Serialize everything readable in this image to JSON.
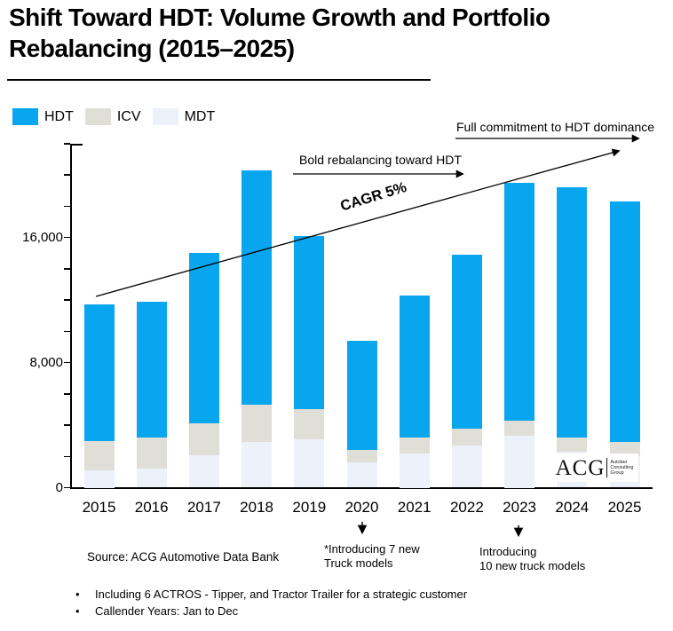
{
  "title": "Shift Toward HDT: Volume Growth and Portfolio Rebalancing (2015–2025)",
  "legend": [
    {
      "label": "HDT",
      "color": "#09A6F0"
    },
    {
      "label": "ICV",
      "color": "#DFDED7"
    },
    {
      "label": "MDT",
      "color": "#EDF2FA"
    }
  ],
  "annotations": {
    "bold_rebalancing": "Bold rebalancing toward HDT",
    "full_commitment": "Full commitment to HDT dominance",
    "cagr": "CAGR 5%",
    "intro_2020": "*Introducing 7 new\nTruck models",
    "intro_2023": "Introducing\n10 new truck models"
  },
  "source": "Source: ACG Automotive Data Bank",
  "footnotes": [
    "Including 6 ACTROS - Tipper, and Tractor Trailer for a strategic customer",
    "Callender Years: Jan to Dec"
  ],
  "logo": {
    "acronym": "ACG",
    "lines": "Autobei\nConsulting\nGroup"
  },
  "chart_data": {
    "type": "bar",
    "stacked": true,
    "title": "Shift Toward HDT: Volume Growth and Portfolio Rebalancing (2015–2025)",
    "categories": [
      "2015",
      "2016",
      "2017",
      "2018",
      "2019",
      "2020",
      "2021",
      "2022",
      "2023",
      "2024",
      "2025"
    ],
    "series": [
      {
        "name": "MDT",
        "color": "#EDF2FA",
        "values": [
          1100,
          1200,
          2100,
          2900,
          3100,
          1600,
          2200,
          2700,
          3300,
          2300,
          2000
        ]
      },
      {
        "name": "ICV",
        "color": "#DFDED7",
        "values": [
          1900,
          2000,
          2000,
          2400,
          1900,
          800,
          1000,
          1100,
          1000,
          900,
          900
        ]
      },
      {
        "name": "HDT",
        "color": "#09A6F0",
        "values": [
          8700,
          8700,
          10900,
          15000,
          11100,
          7000,
          9100,
          11100,
          15200,
          16000,
          15400
        ]
      }
    ],
    "totals": [
      11700,
      11900,
      15000,
      20300,
      16100,
      9400,
      12300,
      14900,
      19500,
      19200,
      18300
    ],
    "ylim": [
      0,
      22000
    ],
    "ytick_interval": 2000,
    "ytick_labels": [
      {
        "value": 0,
        "label": "0"
      },
      {
        "value": 8000,
        "label": "8,000"
      },
      {
        "value": 16000,
        "label": "16,000"
      }
    ],
    "xlabel": "",
    "ylabel": "",
    "grid": false,
    "legend_position": "top-left",
    "trend_arrow": {
      "label": "CAGR 5%",
      "from_year": "2015",
      "to_year": "2025"
    }
  }
}
